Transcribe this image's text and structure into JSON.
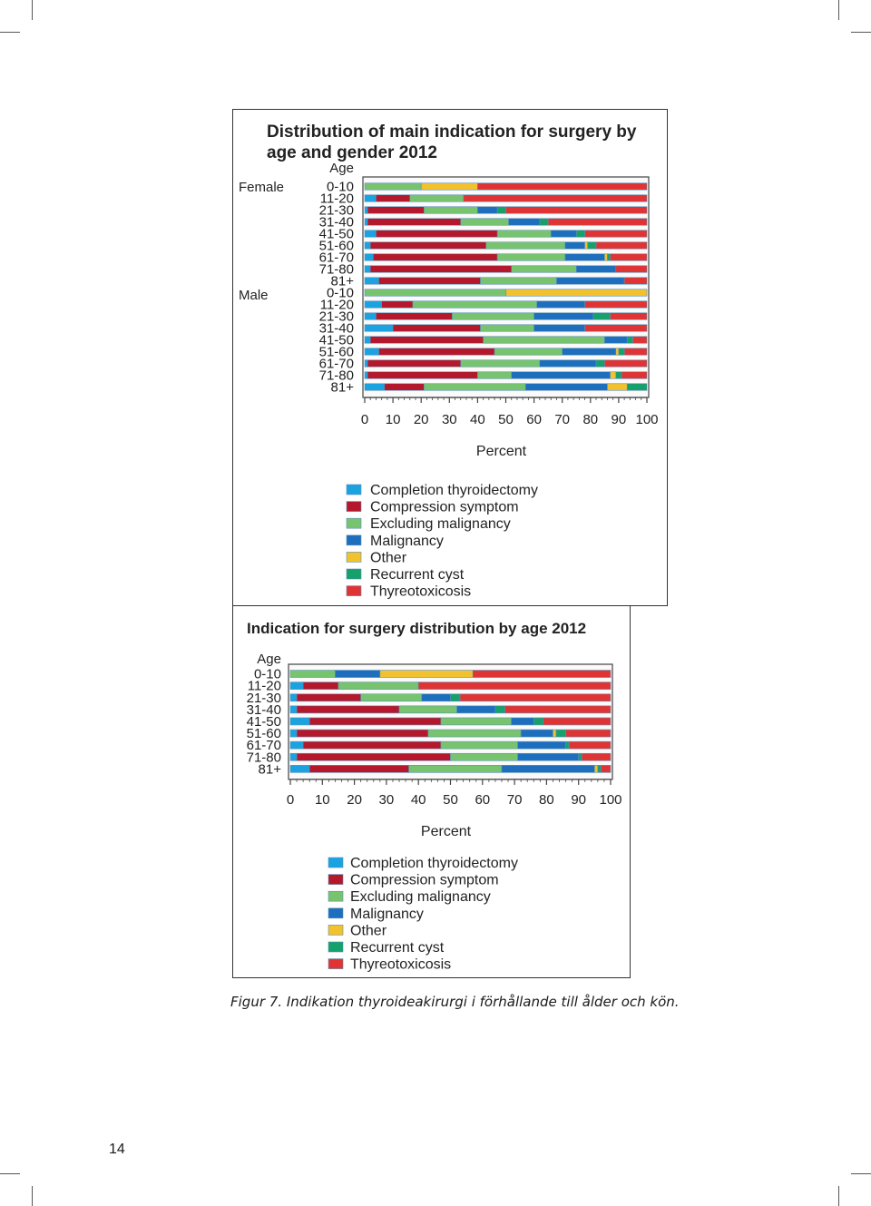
{
  "page": {
    "page_number": "14",
    "caption": "Figur 7. Indikation thyroideakirurgi i förhållande till ålder och kön."
  },
  "colors": {
    "Completion thyroidectomy": "#1aa3e0",
    "Compression symptom": "#b5172b",
    "Excluding malignancy": "#78c46e",
    "Malignancy": "#1d6fbd",
    "Other": "#f2c12e",
    "Recurrent cyst": "#16a06a",
    "Thyreotoxicosis": "#e03434"
  },
  "legend_items": [
    "Completion thyroidectomy",
    "Compression symptom",
    "Excluding malignancy",
    "Malignancy",
    "Other",
    "Recurrent cyst",
    "Thyreotoxicosis"
  ],
  "chart_data": [
    {
      "type": "bar",
      "orientation": "horizontal",
      "stacked": true,
      "title": "Distribution of main indication for surgery by age and gender 2012",
      "group_labels": [
        "Female",
        "Male"
      ],
      "ylabel": "Age",
      "xlabel": "Percent",
      "xlim": [
        0,
        100
      ],
      "x_ticks": [
        "0",
        "10",
        "20",
        "30",
        "40",
        "50",
        "60",
        "70",
        "80",
        "90",
        "100"
      ],
      "categories": [
        "0-10",
        "11-20",
        "21-30",
        "31-40",
        "41-50",
        "51-60",
        "61-70",
        "71-80",
        "81+",
        "0-10",
        "11-20",
        "21-30",
        "31-40",
        "41-50",
        "51-60",
        "61-70",
        "71-80",
        "81+"
      ],
      "series": [
        {
          "name": "Completion thyroidectomy",
          "values": [
            0,
            4,
            1,
            1,
            4,
            2,
            3,
            2,
            5,
            0,
            6,
            4,
            10,
            2,
            5,
            1,
            1,
            7
          ]
        },
        {
          "name": "Compression symptom",
          "values": [
            0,
            12,
            20,
            33,
            43,
            41,
            44,
            50,
            36,
            0,
            11,
            27,
            31,
            40,
            41,
            33,
            39,
            14
          ]
        },
        {
          "name": "Excluding malignancy",
          "values": [
            20,
            19,
            19,
            17,
            19,
            28,
            24,
            23,
            27,
            50,
            44,
            29,
            19,
            43,
            24,
            28,
            12,
            36
          ]
        },
        {
          "name": "Malignancy",
          "values": [
            0,
            0,
            7,
            11,
            9,
            7,
            14,
            14,
            24,
            0,
            17,
            21,
            18,
            8,
            19,
            20,
            35,
            29
          ]
        },
        {
          "name": "Other",
          "values": [
            20,
            0,
            0,
            0,
            0,
            1,
            1,
            0,
            0,
            50,
            0,
            0,
            0,
            0,
            1,
            0,
            2,
            7
          ]
        },
        {
          "name": "Recurrent cyst",
          "values": [
            0,
            0,
            3,
            3,
            3,
            3,
            1,
            0,
            0,
            0,
            0,
            6,
            0,
            2,
            2,
            3,
            2,
            7
          ]
        },
        {
          "name": "Thyreotoxicosis",
          "values": [
            60,
            65,
            50,
            35,
            22,
            18,
            13,
            11,
            8,
            0,
            22,
            13,
            22,
            5,
            8,
            15,
            9,
            0
          ]
        }
      ]
    },
    {
      "type": "bar",
      "orientation": "horizontal",
      "stacked": true,
      "title": "Indication for surgery distribution by age 2012",
      "ylabel": "Age",
      "xlabel": "Percent",
      "xlim": [
        0,
        100
      ],
      "x_ticks": [
        "0",
        "10",
        "20",
        "30",
        "40",
        "50",
        "60",
        "70",
        "80",
        "90",
        "100"
      ],
      "categories": [
        "0-10",
        "11-20",
        "21-30",
        "31-40",
        "41-50",
        "51-60",
        "61-70",
        "71-80",
        "81+"
      ],
      "series": [
        {
          "name": "Completion thyroidectomy",
          "values": [
            0,
            4,
            2,
            2,
            6,
            2,
            4,
            2,
            6
          ]
        },
        {
          "name": "Compression symptom",
          "values": [
            0,
            11,
            20,
            32,
            41,
            41,
            43,
            48,
            31
          ]
        },
        {
          "name": "Excluding malignancy",
          "values": [
            14,
            25,
            19,
            18,
            22,
            29,
            24,
            21,
            29
          ]
        },
        {
          "name": "Malignancy",
          "values": [
            14,
            0,
            9,
            12,
            7,
            10,
            15,
            19,
            29
          ]
        },
        {
          "name": "Other",
          "values": [
            29,
            0,
            0,
            0,
            0,
            1,
            0,
            0,
            1
          ]
        },
        {
          "name": "Recurrent cyst",
          "values": [
            0,
            0,
            3,
            3,
            3,
            3,
            1,
            1,
            1
          ]
        },
        {
          "name": "Thyreotoxicosis",
          "values": [
            43,
            60,
            47,
            33,
            21,
            14,
            13,
            9,
            3
          ]
        }
      ]
    }
  ]
}
